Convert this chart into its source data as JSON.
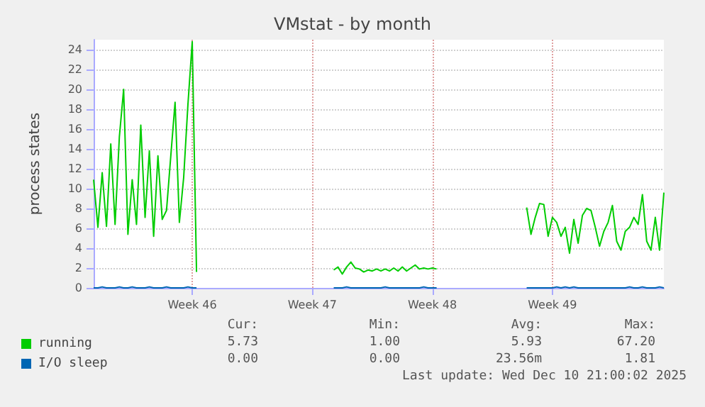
{
  "chart_data": {
    "type": "line",
    "title": "VMstat - by month",
    "ylabel": "process states",
    "categories": [
      null,
      null,
      null,
      null,
      null,
      null,
      null,
      null,
      null,
      null,
      null,
      null,
      null,
      null,
      null,
      null,
      null,
      null,
      null,
      null,
      null,
      null,
      null,
      "Week 46",
      null,
      null,
      null,
      null,
      null,
      null,
      null,
      null,
      null,
      null,
      null,
      null,
      null,
      null,
      null,
      null,
      null,
      null,
      null,
      null,
      null,
      null,
      null,
      null,
      null,
      null,
      null,
      "Week 47",
      null,
      null,
      null,
      null,
      null,
      null,
      null,
      null,
      null,
      null,
      null,
      null,
      null,
      null,
      null,
      null,
      null,
      null,
      null,
      null,
      null,
      null,
      null,
      null,
      null,
      null,
      null,
      "Week 48",
      null,
      null,
      null,
      null,
      null,
      null,
      null,
      null,
      null,
      null,
      null,
      null,
      null,
      null,
      null,
      null,
      null,
      null,
      null,
      null,
      null,
      null,
      null,
      null,
      null,
      null,
      null,
      "Week 49",
      null,
      null,
      null,
      null,
      null,
      null,
      null,
      null,
      null,
      null,
      null,
      null,
      null,
      null,
      null,
      null,
      null,
      null,
      null,
      null,
      null,
      null,
      null,
      null,
      null,
      null
    ],
    "ylim": [
      0,
      25
    ],
    "yticks": [
      0,
      2,
      4,
      6,
      8,
      10,
      12,
      14,
      16,
      18,
      20,
      22,
      24
    ],
    "grid": true,
    "legend": "bottom left",
    "marker": "none",
    "line_style": "solid",
    "series": [
      {
        "name": "running",
        "color": "#00cc00",
        "values": [
          10.9,
          6.1,
          11.6,
          6.2,
          14.5,
          6.4,
          15.2,
          20.0,
          5.4,
          10.9,
          6.4,
          16.4,
          7.1,
          13.8,
          5.2,
          13.3,
          6.9,
          7.8,
          13.3,
          18.7,
          6.6,
          11.1,
          18.5,
          24.8,
          1.6,
          null,
          null,
          null,
          null,
          null,
          null,
          null,
          null,
          null,
          null,
          null,
          null,
          null,
          null,
          null,
          null,
          null,
          null,
          null,
          null,
          null,
          null,
          null,
          null,
          null,
          null,
          null,
          null,
          null,
          null,
          null,
          1.8,
          2.1,
          1.4,
          2.1,
          2.6,
          2.0,
          1.9,
          1.6,
          1.8,
          1.7,
          1.9,
          1.7,
          1.9,
          1.7,
          2.0,
          1.7,
          2.1,
          1.7,
          2.0,
          2.3,
          1.9,
          2.0,
          1.9,
          2.0,
          1.9,
          null,
          null,
          null,
          null,
          null,
          null,
          null,
          null,
          null,
          null,
          null,
          null,
          null,
          null,
          null,
          null,
          null,
          null,
          null,
          null,
          8.1,
          5.4,
          7.1,
          8.5,
          8.4,
          5.2,
          7.1,
          6.6,
          5.2,
          6.1,
          3.5,
          6.9,
          4.5,
          7.3,
          8.0,
          7.8,
          6.1,
          4.2,
          5.7,
          6.6,
          8.3,
          4.7,
          3.8,
          5.7,
          6.1,
          7.1,
          6.4,
          9.4,
          4.7,
          3.8,
          7.1,
          3.8,
          9.6
        ]
      },
      {
        "name": "I/O sleep",
        "color": "#0066b3",
        "values": [
          0,
          0,
          0.1,
          0,
          0,
          0,
          0.1,
          0,
          0,
          0.1,
          0,
          0,
          0,
          0.1,
          0,
          0,
          0,
          0.1,
          0,
          0,
          0,
          0,
          0.1,
          0,
          0,
          null,
          null,
          null,
          null,
          null,
          null,
          null,
          null,
          null,
          null,
          null,
          null,
          null,
          null,
          null,
          null,
          null,
          null,
          null,
          null,
          null,
          null,
          null,
          null,
          null,
          null,
          null,
          null,
          null,
          null,
          null,
          0,
          0,
          0,
          0.1,
          0,
          0,
          0,
          0,
          0,
          0,
          0,
          0,
          0.1,
          0,
          0,
          0,
          0,
          0,
          0,
          0,
          0,
          0.1,
          0,
          0,
          0,
          null,
          null,
          null,
          null,
          null,
          null,
          null,
          null,
          null,
          null,
          null,
          null,
          null,
          null,
          null,
          null,
          null,
          null,
          null,
          null,
          0,
          0,
          0,
          0,
          0,
          0,
          0,
          0.1,
          0,
          0.1,
          0,
          0.1,
          0,
          0,
          0,
          0,
          0,
          0,
          0,
          0,
          0,
          0,
          0,
          0,
          0.1,
          0,
          0,
          0.1,
          0,
          0,
          0,
          0.1,
          0
        ]
      }
    ],
    "annotations": [
      "Cur:",
      "Min:",
      "Avg:",
      "Max:",
      "5.73",
      "1.00",
      "5.93",
      "67.20",
      "0.00",
      "0.00",
      "23.56m",
      "1.81",
      "Last update: Wed Dec 10 21:00:02 2025"
    ]
  }
}
